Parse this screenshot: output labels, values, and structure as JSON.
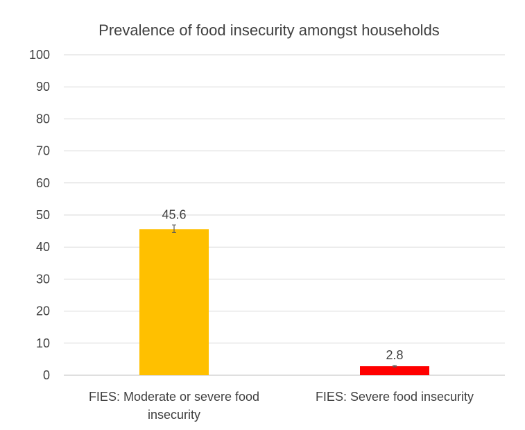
{
  "chart_data": {
    "type": "bar",
    "title": "Prevalence of food insecurity amongst households",
    "xlabel": "",
    "ylabel": "",
    "ylim": [
      0,
      100
    ],
    "yticks": [
      0,
      10,
      20,
      30,
      40,
      50,
      60,
      70,
      80,
      90,
      100
    ],
    "categories": [
      [
        "FIES: Moderate or severe food",
        "insecurity"
      ],
      [
        "FIES: Severe food insecurity"
      ]
    ],
    "values": [
      45.6,
      2.8
    ],
    "data_labels": [
      "45.6",
      "2.8"
    ],
    "error_bars": [
      [
        44.5,
        46.9
      ],
      [
        2.6,
        3.0
      ]
    ],
    "colors": [
      "#FFC000",
      "#FF0000"
    ],
    "grid": true,
    "legend": "none"
  }
}
